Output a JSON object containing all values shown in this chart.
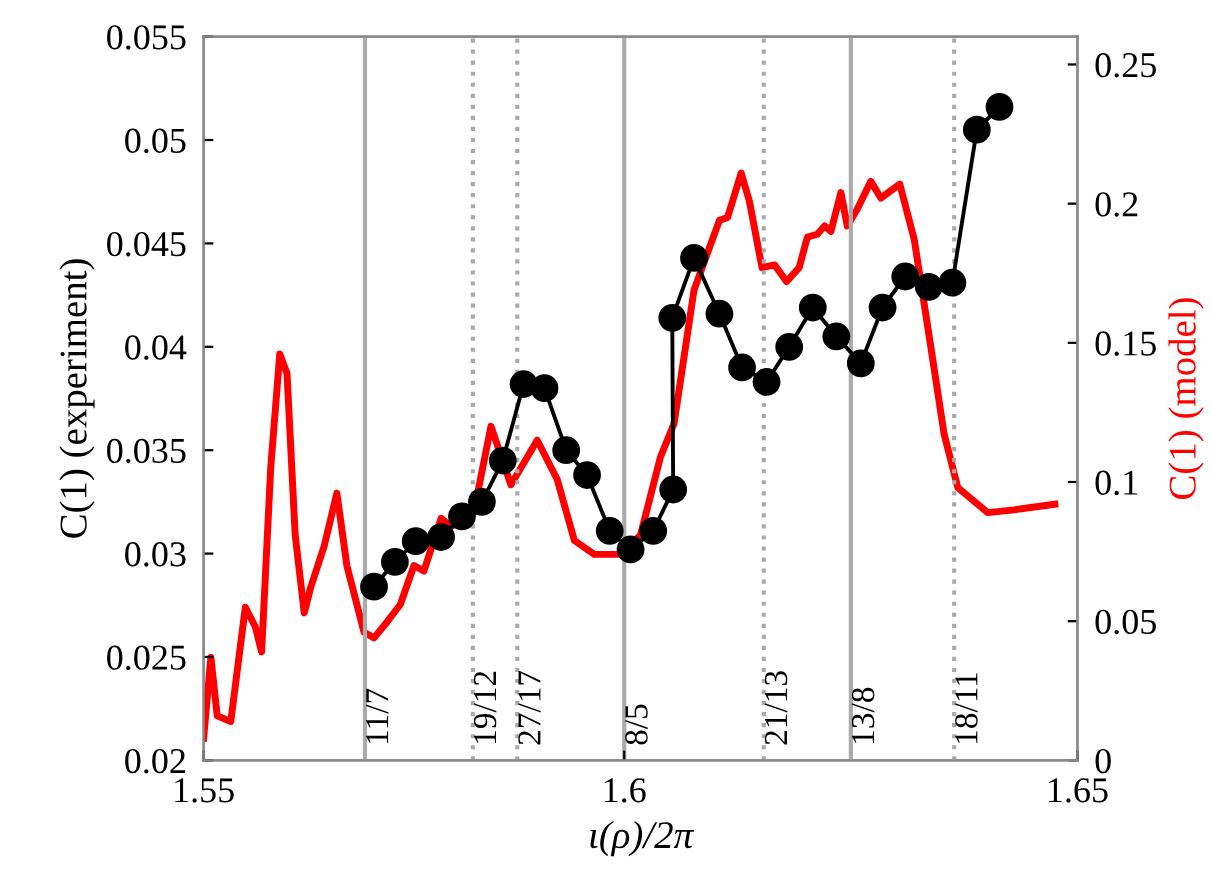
{
  "chart_data": {
    "type": "line",
    "xlabel": "ι(ρ)/2π",
    "ylabel": "C(1) (experiment)",
    "y2label": "C(1) (model)",
    "xlim": [
      1.5536,
      1.65
    ],
    "xticks": [
      {
        "value": 1.5536,
        "label": "1.55"
      },
      1.6,
      1.65
    ],
    "ylim": [
      0.02,
      0.055
    ],
    "yticks": [
      0.02,
      0.025,
      0.03,
      0.035,
      0.04,
      0.045,
      0.05,
      0.055
    ],
    "y2lim": [
      0,
      0.26
    ],
    "y2ticks": [
      0,
      0.05,
      0.1,
      0.15,
      0.2,
      0.25
    ],
    "grid": false,
    "legend": false,
    "series": [
      {
        "color": "#000000",
        "marker": "circle",
        "line_style": "solid",
        "x": [
          1.5724,
          1.5747,
          1.577,
          1.5798,
          1.5821,
          1.5843,
          1.5866,
          1.5889,
          1.5912,
          1.5936,
          1.5959,
          1.5984,
          1.6007,
          1.6032,
          1.6054,
          1.6053,
          1.6077,
          1.6105,
          1.613,
          1.6157,
          1.6182,
          1.6208,
          1.6234,
          1.6261,
          1.6285,
          1.631,
          1.6336,
          1.6362,
          1.6389,
          1.6414
        ],
        "values": [
          0.0284,
          0.0296,
          0.0306,
          0.0308,
          0.0318,
          0.0325,
          0.0345,
          0.0382,
          0.038,
          0.035,
          0.0338,
          0.0311,
          0.0302,
          0.0311,
          0.0331,
          0.0414,
          0.0443,
          0.0416,
          0.039,
          0.0383,
          0.04,
          0.0419,
          0.0405,
          0.0392,
          0.0419,
          0.0434,
          0.0429,
          0.0431,
          0.0505,
          0.0516
        ]
      },
      {
        "color": "#ff0000",
        "marker": "none",
        "line_style": "solid",
        "axis": "y2",
        "x": [
          1.5536,
          1.5544,
          1.5551,
          1.5566,
          1.5582,
          1.5593,
          1.56,
          1.561,
          1.562,
          1.5628,
          1.5637,
          1.5647,
          1.5654,
          1.5669,
          1.5683,
          1.5694,
          1.5713,
          1.5724,
          1.5739,
          1.5753,
          1.5768,
          1.5779,
          1.5798,
          1.5809,
          1.5834,
          1.5853,
          1.5875,
          1.5904,
          1.5926,
          1.5945,
          1.5967,
          1.5996,
          1.6018,
          1.604,
          1.6055,
          1.6077,
          1.6105,
          1.6114,
          1.6129,
          1.6138,
          1.6152,
          1.6166,
          1.6179,
          1.6193,
          1.6202,
          1.6213,
          1.6221,
          1.6228,
          1.6239,
          1.6246,
          1.6257,
          1.6272,
          1.6283,
          1.6304,
          1.632,
          1.6338,
          1.6353,
          1.6368,
          1.6401,
          1.643,
          1.6475
        ],
        "values": [
          0.008,
          0.037,
          0.016,
          0.014,
          0.055,
          0.048,
          0.039,
          0.105,
          0.146,
          0.139,
          0.081,
          0.053,
          0.062,
          0.077,
          0.096,
          0.07,
          0.046,
          0.044,
          0.05,
          0.056,
          0.07,
          0.068,
          0.087,
          0.084,
          0.089,
          0.12,
          0.099,
          0.115,
          0.101,
          0.079,
          0.074,
          0.074,
          0.081,
          0.109,
          0.121,
          0.169,
          0.194,
          0.195,
          0.211,
          0.201,
          0.177,
          0.178,
          0.172,
          0.177,
          0.188,
          0.189,
          0.192,
          0.19,
          0.204,
          0.192,
          0.198,
          0.208,
          0.202,
          0.207,
          0.187,
          0.149,
          0.117,
          0.098,
          0.089,
          0.09,
          0.092
        ]
      }
    ],
    "ref_lines": [
      {
        "axis": "x",
        "value": 1.5714,
        "color": "#aaaaaa",
        "line_style": "solid"
      },
      {
        "axis": "x",
        "value": 1.5833,
        "color": "#aaaaaa",
        "line_style": "dotted"
      },
      {
        "axis": "x",
        "value": 1.5882,
        "color": "#aaaaaa",
        "line_style": "dotted"
      },
      {
        "axis": "x",
        "value": 1.6,
        "color": "#aaaaaa",
        "line_style": "solid"
      },
      {
        "axis": "x",
        "value": 1.6154,
        "color": "#aaaaaa",
        "line_style": "dotted"
      },
      {
        "axis": "x",
        "value": 1.625,
        "color": "#aaaaaa",
        "line_style": "solid"
      },
      {
        "axis": "x",
        "value": 1.6364,
        "color": "#aaaaaa",
        "line_style": "dotted"
      }
    ],
    "annotations": [
      {
        "text": "11/7",
        "x": 1.5714,
        "y": 0.0203
      },
      {
        "text": "19/12",
        "x": 1.5833,
        "y": 0.0203
      },
      {
        "text": "27/17",
        "x": 1.5882,
        "y": 0.0203
      },
      {
        "text": "8/5",
        "x": 1.6,
        "y": 0.0203
      },
      {
        "text": "21/13",
        "x": 1.6154,
        "y": 0.0203
      },
      {
        "text": "13/8",
        "x": 1.625,
        "y": 0.0203
      },
      {
        "text": "18/11",
        "x": 1.6364,
        "y": 0.0203
      }
    ]
  }
}
